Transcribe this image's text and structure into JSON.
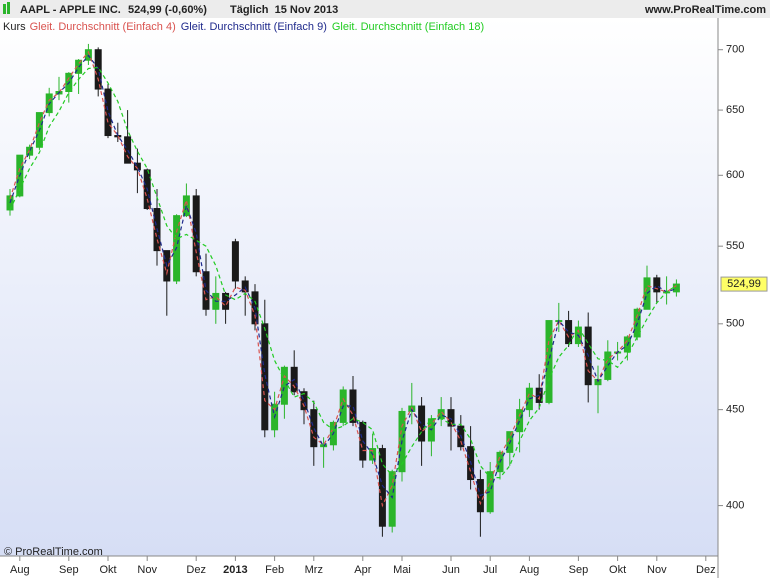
{
  "chart_data": {
    "type": "candlestick",
    "title": "AAPL - APPLE INC.",
    "price_text": "524,99 (-0,60%)",
    "period_text": "Täglich  15 Nov 2013",
    "source": "www.ProRealTime.com",
    "footer": "© ProRealTime.com",
    "last_value": {
      "value": 524.99,
      "label": "524,99"
    },
    "last_value_color": "#ffff66",
    "log_scale": true,
    "ylim": [
      376,
      726
    ],
    "yticks": [
      400,
      450,
      500,
      550,
      600,
      650,
      700
    ],
    "categories": [
      null,
      "Aug",
      null,
      null,
      null,
      null,
      "Sep",
      null,
      null,
      null,
      "Okt",
      null,
      null,
      null,
      "Nov",
      null,
      null,
      null,
      null,
      "Dez",
      null,
      null,
      null,
      "2013",
      null,
      null,
      null,
      "Feb",
      null,
      null,
      null,
      "Mrz",
      null,
      null,
      null,
      null,
      "Apr",
      null,
      null,
      null,
      "Mai",
      null,
      null,
      null,
      null,
      "Jun",
      null,
      null,
      null,
      "Jul",
      null,
      null,
      null,
      "Aug",
      null,
      null,
      null,
      null,
      "Sep",
      null,
      null,
      null,
      "Okt",
      null,
      null,
      null,
      "Nov",
      null,
      null,
      null,
      null,
      "Dez"
    ],
    "candles": {
      "name": "Kurs",
      "up_color": "#2bb52b",
      "down_color": "#1a1a1a",
      "open": [
        575,
        585,
        615,
        621,
        648,
        663,
        665,
        680,
        691,
        700,
        667,
        630,
        629,
        609,
        604,
        576,
        547,
        527,
        571,
        585,
        533,
        509,
        519,
        553,
        527,
        520,
        500,
        439,
        453,
        474,
        460,
        450,
        430,
        431,
        443,
        461,
        443,
        423,
        429,
        390,
        417,
        449,
        452,
        433,
        445,
        450,
        441,
        430,
        413,
        397,
        417,
        427,
        438,
        450,
        462,
        454,
        502,
        502,
        488,
        498,
        464,
        467,
        483,
        483,
        492,
        509,
        529,
        520,
        520,
        null,
        null,
        null
      ],
      "high": [
        590,
        615,
        623,
        648,
        668,
        677,
        681,
        692,
        705,
        702,
        671,
        640,
        650,
        620,
        605,
        590,
        547,
        572,
        594,
        590,
        545,
        530,
        520,
        555,
        530,
        525,
        515,
        460,
        475,
        484,
        462,
        455,
        435,
        444,
        463,
        469,
        444,
        437,
        431,
        418,
        451,
        465,
        457,
        447,
        457,
        457,
        447,
        441,
        418,
        422,
        428,
        437,
        456,
        465,
        470,
        502,
        513,
        508,
        502,
        507,
        475,
        490,
        489,
        493,
        510,
        537,
        531,
        530,
        528,
        null,
        null,
        null
      ],
      "low": [
        571,
        584,
        612,
        619,
        645,
        658,
        656,
        663,
        687,
        661,
        628,
        625,
        609,
        587,
        575,
        537,
        505,
        525,
        570,
        530,
        505,
        500,
        500,
        522,
        505,
        496,
        435,
        435,
        445,
        458,
        442,
        420,
        419,
        428,
        441,
        441,
        419,
        421,
        385,
        387,
        412,
        442,
        420,
        425,
        441,
        428,
        428,
        408,
        385,
        396,
        413,
        420,
        427,
        446,
        450,
        453,
        495,
        486,
        486,
        454,
        448,
        466,
        478,
        478,
        490,
        509,
        513,
        512,
        517,
        null,
        null,
        null
      ],
      "close": [
        585,
        615,
        621,
        648,
        663,
        665,
        680,
        691,
        700,
        667,
        630,
        629,
        609,
        604,
        576,
        547,
        527,
        571,
        585,
        533,
        509,
        519,
        509,
        527,
        520,
        500,
        439,
        453,
        474,
        460,
        450,
        430,
        431,
        443,
        461,
        443,
        423,
        429,
        390,
        417,
        449,
        452,
        433,
        445,
        450,
        441,
        430,
        413,
        397,
        417,
        427,
        438,
        450,
        462,
        454,
        502,
        502,
        488,
        498,
        464,
        467,
        483,
        483,
        492,
        509,
        529,
        520,
        520,
        525,
        null,
        null,
        null
      ]
    },
    "series": [
      {
        "name": "Gleit. Durchschnitt (Einfach 4)",
        "color": "#d9534f",
        "values": [
          583,
          605,
          619,
          640,
          658,
          664,
          676,
          688,
          698,
          675,
          640,
          630,
          614,
          605,
          583,
          555,
          532,
          560,
          582,
          546,
          515,
          517,
          511,
          523,
          521,
          505,
          455,
          450,
          469,
          463,
          452,
          435,
          431,
          440,
          456,
          447,
          428,
          428,
          400,
          410,
          441,
          451,
          438,
          442,
          449,
          443,
          433,
          417,
          401,
          412,
          425,
          435,
          447,
          459,
          456,
          490,
          502,
          492,
          496,
          472,
          466,
          479,
          483,
          490,
          505,
          524,
          522,
          520,
          524,
          null,
          null,
          null
        ]
      },
      {
        "name": "Gleit. Durchschnitt (Einfach 9)",
        "color": "#1f2a8c",
        "values": [
          580,
          600,
          618,
          634,
          655,
          664,
          672,
          685,
          695,
          684,
          649,
          630,
          619,
          606,
          590,
          562,
          537,
          549,
          578,
          559,
          521,
          514,
          514,
          518,
          523,
          510,
          470,
          446,
          463,
          467,
          455,
          440,
          430,
          437,
          452,
          452,
          433,
          426,
          410,
          404,
          433,
          450,
          442,
          439,
          447,
          445,
          436,
          422,
          405,
          407,
          422,
          432,
          444,
          456,
          458,
          478,
          502,
          495,
          493,
          481,
          466,
          475,
          483,
          487,
          500,
          519,
          524,
          520,
          522,
          null,
          null,
          null
        ]
      },
      {
        "name": "Gleit. Durchschnitt (Einfach 18)",
        "color": "#22cc22",
        "values": [
          575,
          590,
          605,
          617,
          637,
          649,
          664,
          675,
          684,
          685,
          672,
          657,
          634,
          618,
          605,
          584,
          564,
          555,
          558,
          554,
          550,
          537,
          518,
          515,
          519,
          514,
          497,
          478,
          467,
          457,
          459,
          454,
          443,
          439,
          441,
          445,
          443,
          439,
          421,
          415,
          421,
          430,
          438,
          445,
          445,
          442,
          442,
          434,
          420,
          414,
          414,
          420,
          433,
          444,
          451,
          467,
          480,
          487,
          498,
          488,
          479,
          478,
          474,
          481,
          492,
          503,
          513,
          520,
          524,
          null,
          null,
          null
        ]
      }
    ]
  }
}
